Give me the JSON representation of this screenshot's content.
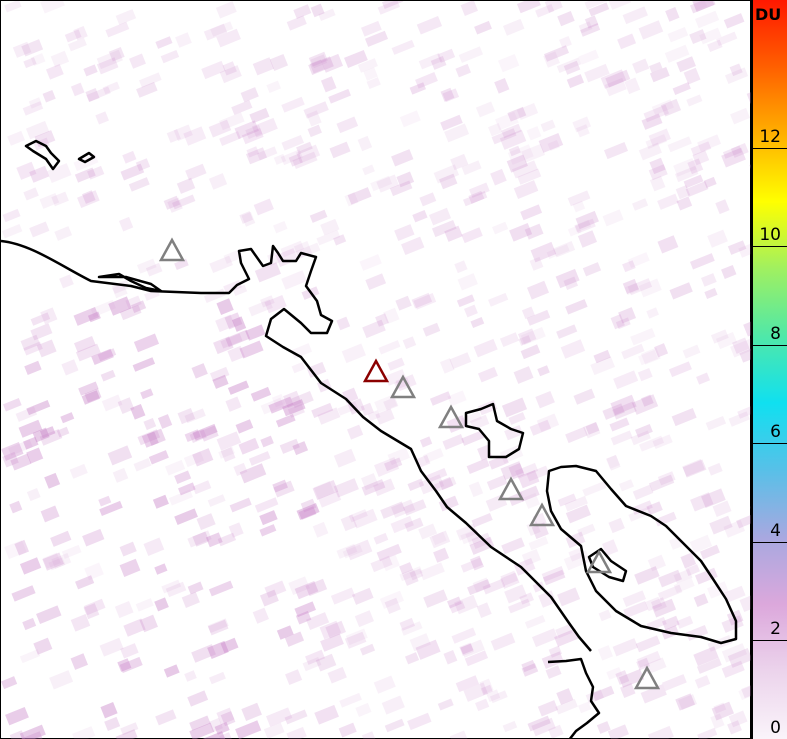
{
  "map": {
    "volcano_markers": [
      {
        "color": "#808080",
        "highlighted": false
      },
      {
        "color": "#8b0000",
        "highlighted": true
      },
      {
        "color": "#808080",
        "highlighted": false
      },
      {
        "color": "#808080",
        "highlighted": false
      },
      {
        "color": "#808080",
        "highlighted": false
      },
      {
        "color": "#808080",
        "highlighted": false
      },
      {
        "color": "#808080",
        "highlighted": false
      },
      {
        "color": "#808080",
        "highlighted": false
      }
    ],
    "coastline_color": "#000000"
  },
  "colorbar": {
    "unit": "DU",
    "range": [
      0,
      15
    ],
    "ticks": [
      "0",
      "2",
      "4",
      "6",
      "8",
      "10",
      "12"
    ],
    "colors": [
      "#faf4fa",
      "#ecd4ec",
      "#dca8dc",
      "#a8a8e0",
      "#58c0e8",
      "#10e0f0",
      "#50e8a8",
      "#a0f060",
      "#ffff00",
      "#ffb000",
      "#ff6000",
      "#ff1800"
    ]
  }
}
